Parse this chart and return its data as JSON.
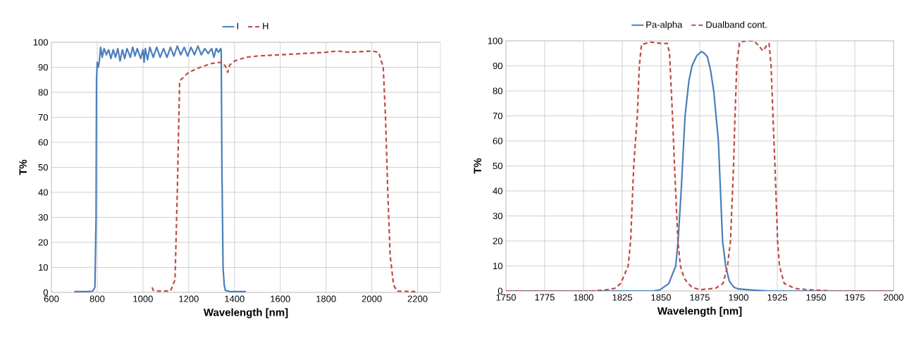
{
  "chart_data": [
    {
      "type": "line",
      "xlabel": "Wavelength [nm]",
      "ylabel": "T%",
      "xlim": [
        600,
        2300
      ],
      "ylim": [
        0,
        100
      ],
      "xticks": [
        600,
        800,
        1000,
        1200,
        1400,
        1600,
        1800,
        2000,
        2200
      ],
      "yticks": [
        0,
        10,
        20,
        30,
        40,
        50,
        60,
        70,
        80,
        90,
        100
      ],
      "grid": true,
      "legend": "top",
      "series": [
        {
          "name": "I",
          "color": "#4a7ebb",
          "line_style": "solid",
          "x": [
            700,
            760,
            780,
            790,
            795,
            797,
            800,
            805,
            810,
            815,
            822,
            830,
            840,
            850,
            860,
            870,
            880,
            890,
            900,
            910,
            920,
            930,
            945,
            955,
            965,
            975,
            990,
            1000,
            1005,
            1010,
            1020,
            1030,
            1045,
            1060,
            1075,
            1090,
            1105,
            1120,
            1135,
            1150,
            1165,
            1180,
            1195,
            1210,
            1225,
            1240,
            1255,
            1270,
            1285,
            1300,
            1310,
            1320,
            1330,
            1340,
            1342,
            1345,
            1350,
            1355,
            1360,
            1380,
            1450
          ],
          "values": [
            0.3,
            0.3,
            0.5,
            2,
            30,
            85,
            92,
            90,
            93,
            98,
            94,
            97.5,
            95,
            97,
            93.5,
            97,
            94,
            97.5,
            92.5,
            97,
            93.5,
            97.5,
            94,
            98,
            94.5,
            97.5,
            93.5,
            97,
            92,
            97.5,
            93,
            98,
            94,
            98,
            94,
            97.5,
            94,
            98,
            94.5,
            98.5,
            95,
            98,
            94.5,
            98,
            95,
            98.5,
            95,
            97.5,
            95.5,
            97.5,
            94,
            97.5,
            96,
            97.5,
            96,
            50,
            10,
            3,
            0.8,
            0.3,
            0.3
          ]
        },
        {
          "name": "H",
          "color": "#be4b48",
          "line_style": "dashed",
          "x": [
            1040,
            1045,
            1050,
            1120,
            1140,
            1150,
            1160,
            1165,
            1200,
            1250,
            1300,
            1340,
            1360,
            1370,
            1380,
            1400,
            1450,
            1500,
            1600,
            1700,
            1800,
            1850,
            1900,
            2000,
            2030,
            2050,
            2060,
            2070,
            2080,
            2095,
            2110,
            2190
          ],
          "values": [
            2,
            0.8,
            0.5,
            0.5,
            5,
            40,
            84,
            85,
            88,
            90,
            91.5,
            92,
            90.5,
            88,
            91,
            92.5,
            94,
            94.5,
            95,
            95.5,
            96,
            96.5,
            96,
            96.5,
            96,
            90,
            70,
            40,
            15,
            3,
            0.5,
            0.3
          ]
        }
      ]
    },
    {
      "type": "line",
      "xlabel": "Wavelength [nm]",
      "ylabel": "T%",
      "xlim": [
        1750,
        2000
      ],
      "ylim": [
        0,
        100
      ],
      "xticks": [
        1750,
        1775,
        1800,
        1825,
        1850,
        1875,
        1900,
        1925,
        1950,
        1975,
        2000
      ],
      "yticks": [
        0,
        10,
        20,
        30,
        40,
        50,
        60,
        70,
        80,
        90,
        100
      ],
      "grid": true,
      "legend": "top",
      "series": [
        {
          "name": "Pa-alpha",
          "color": "#4a7ebb",
          "line_style": "solid",
          "x": [
            1750,
            1845,
            1849.5,
            1855,
            1859.5,
            1861,
            1863,
            1865.5,
            1868,
            1870,
            1873,
            1876,
            1878,
            1880,
            1882,
            1884,
            1887,
            1889.7,
            1891.7,
            1894,
            1897,
            1900,
            1910,
            1920,
            2000
          ],
          "values": [
            0,
            0,
            0.5,
            3,
            10,
            20,
            40,
            70,
            84,
            90,
            94,
            95.7,
            95,
            93.5,
            88,
            80,
            60,
            20,
            10,
            4,
            1.5,
            0.8,
            0.3,
            0,
            0
          ]
        },
        {
          "name": "Dualband cont.",
          "color": "#be4b48",
          "line_style": "dashed",
          "x": [
            1750,
            1805,
            1815,
            1820,
            1824,
            1828.8,
            1830.4,
            1832.4,
            1834.7,
            1836,
            1837.4,
            1843,
            1850,
            1854,
            1855.5,
            1857.4,
            1858.7,
            1860.9,
            1862.5,
            1865,
            1867.6,
            1870,
            1875,
            1880,
            1885,
            1890,
            1892.9,
            1894.8,
            1896.8,
            1897.7,
            1899,
            1900.8,
            1905,
            1910,
            1913,
            1915.8,
            1918,
            1919.7,
            1921,
            1922.2,
            1923.5,
            1925.2,
            1926.4,
            1929.5,
            1936.3,
            1945,
            1960,
            2000
          ],
          "values": [
            0,
            0,
            0.5,
            1,
            3,
            10,
            20,
            50,
            70,
            90,
            98.5,
            99.5,
            99,
            99,
            95,
            70,
            50,
            20,
            10,
            5,
            3,
            1.5,
            0.5,
            0.8,
            1,
            3,
            10,
            20,
            50,
            70,
            92,
            99.5,
            100,
            100,
            98,
            96,
            98,
            99,
            90,
            70,
            50,
            20,
            10,
            3,
            1,
            0.5,
            0,
            0
          ]
        }
      ]
    }
  ]
}
